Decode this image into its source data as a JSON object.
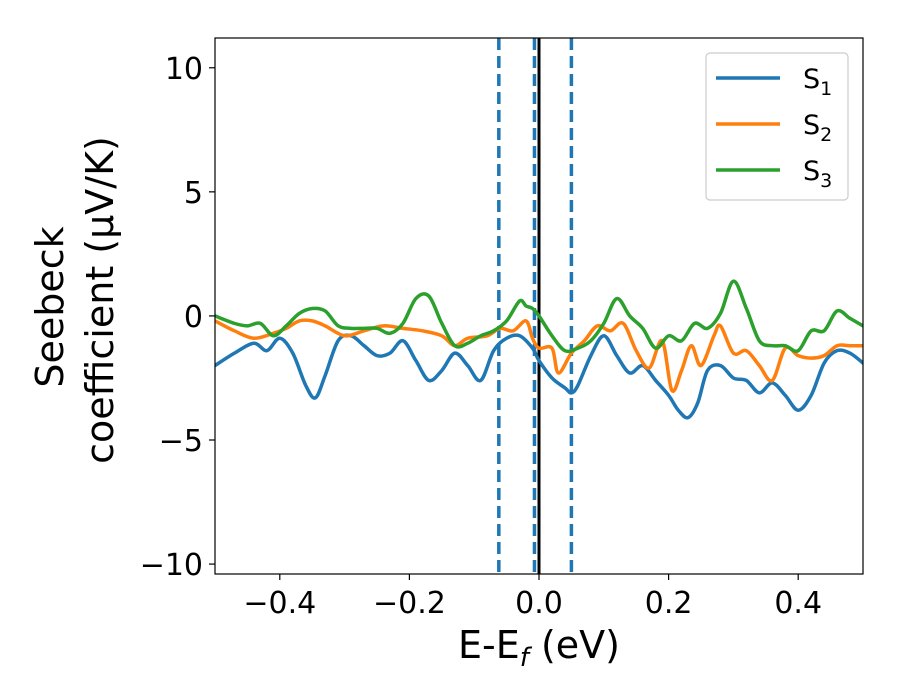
{
  "chart_data": {
    "type": "line",
    "xlabel": {
      "main": "E-E",
      "sub": "f",
      "tail": " (eV)"
    },
    "ylabel_lines": [
      "Seebeck",
      "coefficient  (μV/K)"
    ],
    "xlim": [
      -0.5,
      0.5
    ],
    "ylim": [
      -10.4,
      11.2
    ],
    "xticks": [
      -0.4,
      -0.2,
      0.0,
      0.2,
      0.4
    ],
    "xtick_labels": [
      "−0.4",
      "−0.2",
      "0.0",
      "0.2",
      "0.4"
    ],
    "yticks": [
      -10,
      -5,
      0,
      5,
      10
    ],
    "ytick_labels": [
      "−10",
      "−5",
      "0",
      "5",
      "10"
    ],
    "grid": false,
    "legend_position": "top-right",
    "vertical_lines": [
      {
        "x": -0.062,
        "style": "dashed",
        "color": "#1f77b4"
      },
      {
        "x": -0.007,
        "style": "dashed",
        "color": "#1f77b4"
      },
      {
        "x": 0.05,
        "style": "dashed",
        "color": "#1f77b4"
      },
      {
        "x": 0.0,
        "style": "solid",
        "color": "#000000"
      }
    ],
    "series": [
      {
        "name": "S",
        "sub": "1",
        "color": "#1f77b4",
        "x": [
          -0.5,
          -0.47,
          -0.44,
          -0.42,
          -0.4,
          -0.38,
          -0.36,
          -0.345,
          -0.33,
          -0.31,
          -0.29,
          -0.27,
          -0.25,
          -0.23,
          -0.21,
          -0.19,
          -0.17,
          -0.15,
          -0.13,
          -0.11,
          -0.09,
          -0.07,
          -0.05,
          -0.03,
          -0.01,
          0.0,
          0.02,
          0.04,
          0.05,
          0.06,
          0.08,
          0.1,
          0.12,
          0.14,
          0.16,
          0.18,
          0.2,
          0.215,
          0.23,
          0.245,
          0.26,
          0.28,
          0.3,
          0.32,
          0.34,
          0.36,
          0.38,
          0.4,
          0.42,
          0.44,
          0.46,
          0.48,
          0.5
        ],
        "y": [
          -2.0,
          -1.5,
          -1.1,
          -1.4,
          -0.9,
          -1.5,
          -2.8,
          -3.3,
          -2.4,
          -1.0,
          -0.8,
          -1.2,
          -1.6,
          -1.5,
          -1.0,
          -1.8,
          -2.6,
          -2.2,
          -1.5,
          -2.0,
          -2.6,
          -1.4,
          -0.9,
          -0.8,
          -1.3,
          -1.8,
          -2.5,
          -2.9,
          -3.1,
          -2.8,
          -1.6,
          -0.8,
          -1.6,
          -2.3,
          -2.0,
          -2.6,
          -3.2,
          -3.8,
          -4.1,
          -3.5,
          -2.2,
          -2.0,
          -2.5,
          -2.6,
          -3.1,
          -2.7,
          -3.2,
          -3.8,
          -3.2,
          -1.9,
          -1.4,
          -1.5,
          -1.9
        ]
      },
      {
        "name": "S",
        "sub": "2",
        "color": "#ff7f0e",
        "x": [
          -0.5,
          -0.47,
          -0.44,
          -0.41,
          -0.39,
          -0.37,
          -0.35,
          -0.33,
          -0.3,
          -0.27,
          -0.24,
          -0.21,
          -0.18,
          -0.15,
          -0.13,
          -0.11,
          -0.08,
          -0.06,
          -0.04,
          -0.02,
          -0.01,
          0.0,
          0.02,
          0.03,
          0.05,
          0.07,
          0.09,
          0.11,
          0.13,
          0.15,
          0.17,
          0.19,
          0.205,
          0.22,
          0.235,
          0.25,
          0.27,
          0.28,
          0.3,
          0.32,
          0.34,
          0.36,
          0.38,
          0.4,
          0.42,
          0.44,
          0.46,
          0.48,
          0.5
        ],
        "y": [
          -0.2,
          -0.6,
          -0.9,
          -0.7,
          -0.5,
          -0.2,
          -0.2,
          -0.4,
          -0.8,
          -0.6,
          -0.4,
          -0.5,
          -0.6,
          -0.8,
          -1.2,
          -0.9,
          -0.8,
          -0.5,
          -0.6,
          -0.2,
          -0.9,
          -1.3,
          -1.3,
          -2.3,
          -1.5,
          -1.0,
          -0.4,
          -0.6,
          -0.3,
          -1.4,
          -2.1,
          -1.0,
          -3.0,
          -2.2,
          -1.2,
          -2.0,
          -0.8,
          -0.4,
          -1.5,
          -1.4,
          -2.0,
          -2.6,
          -1.3,
          -1.6,
          -1.7,
          -1.6,
          -1.2,
          -1.2,
          -1.2
        ]
      },
      {
        "name": "S",
        "sub": "3",
        "color": "#2ca02c",
        "x": [
          -0.5,
          -0.47,
          -0.45,
          -0.43,
          -0.41,
          -0.39,
          -0.37,
          -0.35,
          -0.33,
          -0.31,
          -0.29,
          -0.27,
          -0.25,
          -0.23,
          -0.21,
          -0.19,
          -0.17,
          -0.15,
          -0.13,
          -0.11,
          -0.09,
          -0.07,
          -0.05,
          -0.03,
          -0.02,
          -0.01,
          0.0,
          0.02,
          0.04,
          0.06,
          0.08,
          0.1,
          0.12,
          0.14,
          0.16,
          0.18,
          0.2,
          0.22,
          0.24,
          0.26,
          0.28,
          0.3,
          0.32,
          0.34,
          0.36,
          0.38,
          0.4,
          0.42,
          0.44,
          0.46,
          0.48,
          0.5
        ],
        "y": [
          0.0,
          -0.3,
          -0.4,
          -0.3,
          -0.8,
          -0.4,
          0.1,
          0.3,
          0.2,
          -0.4,
          -0.5,
          -0.5,
          -0.5,
          -0.7,
          -0.3,
          0.7,
          0.8,
          -0.3,
          -1.2,
          -1.1,
          -0.8,
          -0.6,
          -0.2,
          0.6,
          0.4,
          0.3,
          0.0,
          -0.8,
          -1.4,
          -1.3,
          -1.0,
          -0.3,
          0.7,
          0.0,
          -0.5,
          -1.3,
          -0.8,
          -1.0,
          -0.3,
          -0.5,
          0.1,
          1.4,
          0.3,
          -1.0,
          -1.2,
          -1.2,
          -1.4,
          -0.6,
          -0.6,
          0.2,
          -0.1,
          -0.4
        ]
      }
    ]
  }
}
